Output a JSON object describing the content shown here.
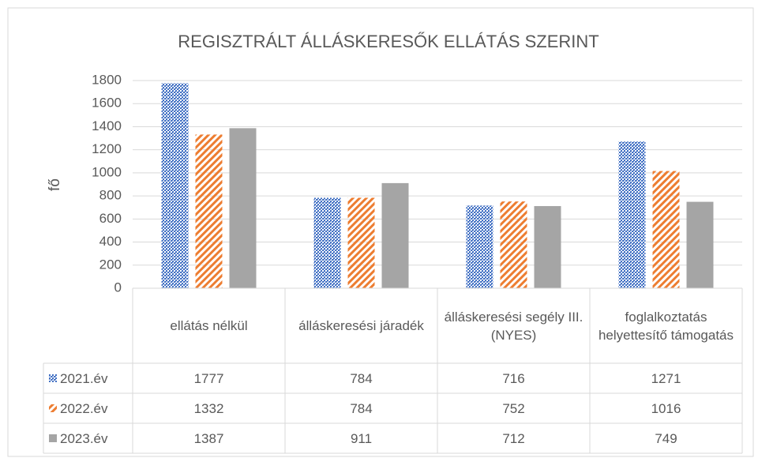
{
  "chart_data": {
    "type": "bar",
    "title": "REGISZTRÁLT ÁLLÁSKERESŐK ELLÁTÁS SZERINT",
    "y_label": "fő",
    "categories": [
      "ellátás nélkül",
      "álláskeresési járadék",
      "álláskeresési segély III. (NYES)",
      "foglalkoztatás helyettesítő támogatás"
    ],
    "series": [
      {
        "name": "2021.év",
        "color": "#4472c4",
        "pattern": "dots",
        "values": [
          1777,
          784,
          716,
          1271
        ]
      },
      {
        "name": "2022.év",
        "color": "#ed7d31",
        "pattern": "diagonal",
        "values": [
          1332,
          784,
          752,
          1016
        ]
      },
      {
        "name": "2023.év",
        "color": "#a5a5a5",
        "pattern": "solid",
        "values": [
          1387,
          911,
          712,
          749
        ]
      }
    ],
    "ylim": [
      0,
      1800
    ],
    "yticks": [
      0,
      200,
      400,
      600,
      800,
      1000,
      1200,
      1400,
      1600,
      1800
    ],
    "grid": true,
    "data_table": true
  }
}
